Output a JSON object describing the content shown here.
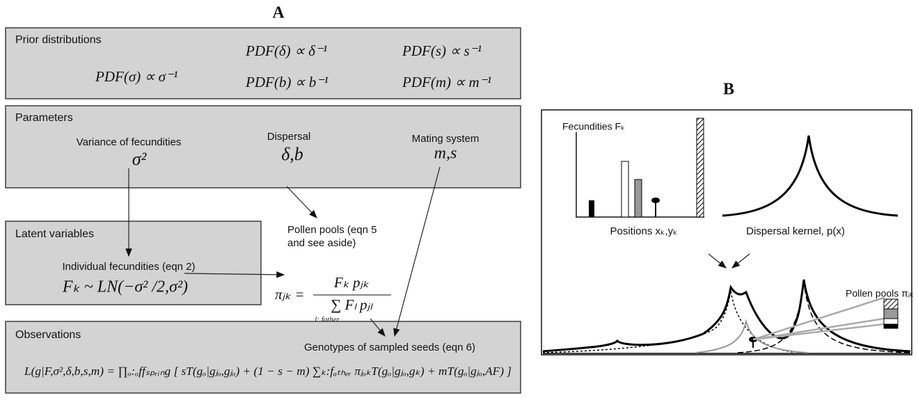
{
  "panel_a": {
    "label": "A",
    "prior": {
      "title": "Prior distributions",
      "formulas": [
        "PDF(δ) ∝ δ⁻¹",
        "PDF(s) ∝ s⁻¹",
        "PDF(σ) ∝ σ⁻¹",
        "PDF(b) ∝ b⁻¹",
        "PDF(m) ∝ m⁻¹"
      ]
    },
    "parameters": {
      "title": "Parameters",
      "items": [
        {
          "label": "Variance of fecundities",
          "symbol": "σ²"
        },
        {
          "label": "Dispersal",
          "symbol": "δ,b"
        },
        {
          "label": "Mating system",
          "symbol": "m,s"
        }
      ]
    },
    "latent": {
      "title": "Latent variables",
      "label": "Individual fecundities (eqn 2)",
      "formula": "Fₖ ~ LN(−σ² /2,σ²)"
    },
    "pollen": {
      "lines": [
        "Pollen pools (eqn 5",
        "and see aside)"
      ],
      "lhs": "πⱼₖ =",
      "numerator": "Fₖ pⱼₖ",
      "denominator": "∑ Fₗ pⱼₗ",
      "sum_index": "l: father"
    },
    "observations": {
      "title": "Observations",
      "label": "Genotypes of sampled seeds (eqn 6)",
      "formula": "L(g|F,σ²,δ,b,s,m) = ∏ₒ:ₒffₛₚᵣᵢₙg [ sT(gₒ|gⱼₒ,gⱼₒ) + (1 − s − m) ∑ₖ:fₐₜₕₑᵣ πⱼₒₖT(gₒ|gⱼₒ,gₖ) + mT(gₒ|gⱼₒ,AF) ]"
    }
  },
  "panel_b": {
    "label": "B",
    "fecundities": "Fecundities Fₖ",
    "positions": "Positions xₖ,yₖ",
    "kernel": "Dispersal kernel, p(x)",
    "pollen": "Pollen pools πⱼₖ"
  }
}
